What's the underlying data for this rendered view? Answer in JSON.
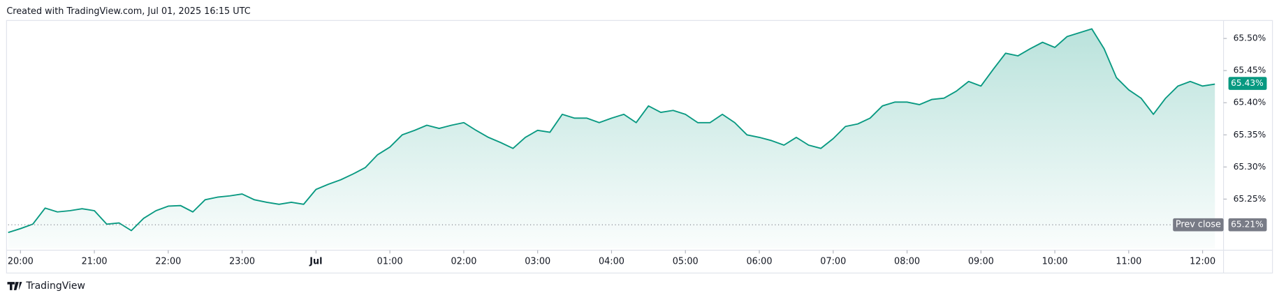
{
  "header": "Created with TradingView.com, Jul 01, 2025 16:15 UTC",
  "footer": "TradingView",
  "chart_data": {
    "type": "area",
    "x": [
      "19:50",
      "20:00",
      "20:10",
      "20:20",
      "20:30",
      "20:40",
      "20:50",
      "21:00",
      "21:10",
      "21:20",
      "21:30",
      "21:40",
      "21:50",
      "22:00",
      "22:10",
      "22:20",
      "22:30",
      "22:40",
      "22:50",
      "23:00",
      "23:10",
      "23:20",
      "23:30",
      "23:40",
      "23:50",
      "00:00",
      "00:10",
      "00:20",
      "00:30",
      "00:40",
      "00:50",
      "01:00",
      "01:10",
      "01:20",
      "01:30",
      "01:40",
      "01:50",
      "02:00",
      "02:10",
      "02:20",
      "02:30",
      "02:40",
      "02:50",
      "03:00",
      "03:10",
      "03:20",
      "03:30",
      "03:40",
      "03:50",
      "04:00",
      "04:10",
      "04:20",
      "04:30",
      "04:40",
      "04:50",
      "05:00",
      "05:10",
      "05:20",
      "05:30",
      "05:40",
      "05:50",
      "06:00",
      "06:10",
      "06:20",
      "06:30",
      "06:40",
      "06:50",
      "07:00",
      "07:10",
      "07:20",
      "07:30",
      "07:40",
      "07:50",
      "08:00",
      "08:10",
      "08:20",
      "08:30",
      "08:40",
      "08:50",
      "09:00",
      "09:10",
      "09:20",
      "09:30",
      "09:40",
      "09:50",
      "10:00",
      "10:10",
      "10:20",
      "10:30",
      "10:40",
      "10:50",
      "11:00",
      "11:10",
      "11:20",
      "11:30",
      "11:40",
      "11:50",
      "12:00",
      "12:10"
    ],
    "values": [
      65.198,
      65.204,
      65.211,
      65.236,
      65.23,
      65.232,
      65.235,
      65.232,
      65.211,
      65.213,
      65.201,
      65.22,
      65.232,
      65.239,
      65.24,
      65.23,
      65.249,
      65.253,
      65.255,
      65.258,
      65.249,
      65.245,
      65.242,
      65.245,
      65.242,
      65.265,
      65.273,
      65.28,
      65.289,
      65.299,
      65.319,
      65.331,
      65.35,
      65.357,
      65.365,
      65.36,
      65.365,
      65.369,
      65.357,
      65.346,
      65.338,
      65.329,
      65.346,
      65.357,
      65.354,
      65.382,
      65.376,
      65.376,
      65.369,
      65.376,
      65.382,
      65.369,
      65.395,
      65.385,
      65.388,
      65.382,
      65.369,
      65.369,
      65.382,
      65.369,
      65.35,
      65.346,
      65.341,
      65.334,
      65.346,
      65.334,
      65.329,
      65.344,
      65.363,
      65.367,
      65.376,
      65.395,
      65.401,
      65.401,
      65.397,
      65.405,
      65.407,
      65.418,
      65.433,
      65.426,
      65.452,
      65.477,
      65.473,
      65.484,
      65.494,
      65.486,
      65.503,
      65.509,
      65.515,
      65.484,
      65.439,
      65.42,
      65.407,
      65.382,
      65.407,
      65.426,
      65.433,
      65.426,
      65.429
    ],
    "color": "#089981",
    "xlim": [
      "19:50",
      "12:17"
    ],
    "xticks": [
      "20:00",
      "21:00",
      "22:00",
      "23:00",
      {
        "value": "00:00",
        "label": "Jul"
      },
      "01:00",
      "02:00",
      "03:00",
      "04:00",
      "05:00",
      "06:00",
      "07:00",
      "08:00",
      "09:00",
      "10:00",
      "11:00",
      "12:00"
    ],
    "ylim": [
      65.173,
      65.528
    ],
    "yticks": [
      {
        "value": 65.25,
        "label": "65.25%"
      },
      {
        "value": 65.3,
        "label": "65.30%"
      },
      {
        "value": 65.35,
        "label": "65.35%"
      },
      {
        "value": 65.4,
        "label": "65.40%"
      },
      {
        "value": 65.45,
        "label": "65.45%"
      },
      {
        "value": 65.5,
        "label": "65.50%"
      }
    ],
    "last_price": {
      "value": 65.43,
      "label": "65.43%"
    },
    "prev_close": {
      "name": "Prev close",
      "value": 65.21,
      "label": "65.21%"
    }
  }
}
